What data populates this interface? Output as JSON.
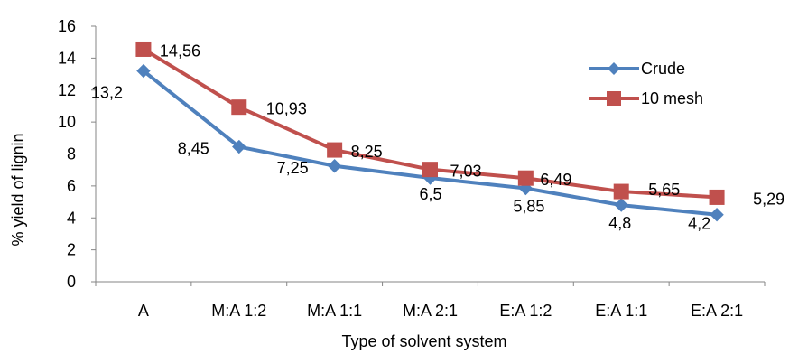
{
  "chart_data": {
    "type": "line",
    "title": "",
    "xlabel": "Type of solvent system",
    "ylabel": "% yield of lignin",
    "ylim": [
      0,
      16
    ],
    "yticks": [
      0,
      2,
      4,
      6,
      8,
      10,
      12,
      14,
      16
    ],
    "categories": [
      "A",
      "M:A 1:2",
      "M:A 1:1",
      "M:A 2:1",
      "E:A 1:2",
      "E:A 1:1",
      "E:A 2:1"
    ],
    "grid": false,
    "legend": "right",
    "series": [
      {
        "name": "Crude",
        "values": [
          13.2,
          8.45,
          7.25,
          6.5,
          5.85,
          4.8,
          4.2
        ],
        "labels": [
          "13,2",
          "8,45",
          "7,25",
          "6,5",
          "5,85",
          "4,8",
          "4,2"
        ],
        "color": "#4F81BD",
        "marker": "diamond"
      },
      {
        "name": "10 mesh",
        "values": [
          14.56,
          10.93,
          8.25,
          7.03,
          6.49,
          5.65,
          5.29
        ],
        "labels": [
          "14,56",
          "10,93",
          "8,25",
          "7,03",
          "6,49",
          "5,65",
          "5,29"
        ],
        "color": "#C0504D",
        "marker": "square"
      }
    ]
  }
}
